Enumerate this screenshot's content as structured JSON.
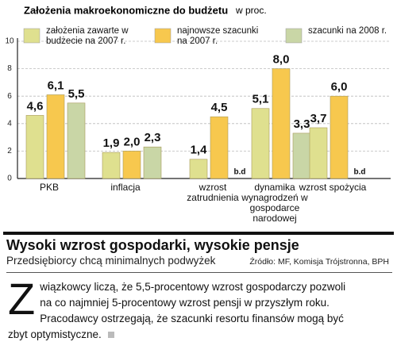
{
  "chart_data": {
    "type": "bar",
    "title": "Założenia makroekonomiczne do budżetu",
    "unit": "w proc.",
    "categories": [
      "PKB",
      "inflacja",
      "wzrost zatrudnienia",
      "dynamika wynagrodzeń w gospodarce narodowej",
      "wzrost spożycia"
    ],
    "series": [
      {
        "name": "założenia zawarte w budżecie na 2007 r.",
        "color": "#dfe08f",
        "values": [
          4.6,
          1.9,
          1.4,
          5.1,
          3.7
        ],
        "value_labels": [
          "4,6",
          "1,9",
          "1,4",
          "5,1",
          "3,7"
        ]
      },
      {
        "name": "najnowsze szacunki na 2007 r.",
        "color": "#f7c84e",
        "values": [
          6.1,
          2.0,
          4.5,
          8.0,
          6.0
        ],
        "value_labels": [
          "6,1",
          "2,0",
          "4,5",
          "8,0",
          "6,0"
        ]
      },
      {
        "name": "szacunki na 2008 r.",
        "color": "#c9d6a6",
        "values": [
          5.5,
          2.3,
          null,
          3.3,
          null
        ],
        "value_labels": [
          "5,5",
          "2,3",
          "b.d",
          "3,3",
          "b.d"
        ]
      }
    ],
    "ylim": [
      0,
      10
    ],
    "yticks": [
      0,
      2,
      4,
      6,
      8,
      10
    ],
    "grid": true
  },
  "article": {
    "headline": "Wysoki wzrost gospodarki, wysokie pensje",
    "subheadline": "Przedsiębiorcy chcą minimalnych podwyżek",
    "source": "Źródło: MF, Komisja Trójstronna, BPH",
    "drop_cap": "Z",
    "body": "wiązkowcy liczą, że 5,5-procentowy wzrost gospodarczy pozwoli na co najmniej 5-procentowy wzrost pensji w przyszłym roku. Pracodawcy ostrzegają, że szacunki resortu finansów mogą być zbyt optymistyczne."
  }
}
